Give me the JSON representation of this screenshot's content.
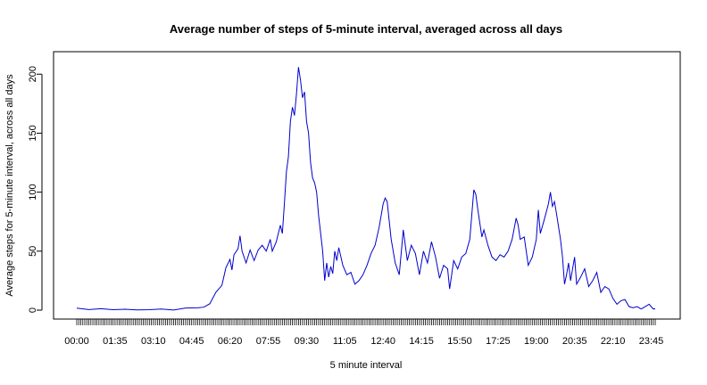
{
  "chart_data": {
    "type": "line",
    "title": "Average number of steps of 5-minute interval, averaged across all days",
    "xlabel": "5 minute interval",
    "ylabel": "Average steps for 5-minute interval, across all days",
    "ylim": [
      0,
      210
    ],
    "yticks": [
      0,
      50,
      100,
      150,
      200
    ],
    "xtick_labels": [
      "00:00",
      "01:35",
      "03:10",
      "04:45",
      "06:20",
      "07:55",
      "09:30",
      "11:05",
      "12:40",
      "14:15",
      "15:50",
      "17:25",
      "19:00",
      "20:35",
      "22:10",
      "23:45"
    ],
    "line_color": "#0000cd",
    "grid": false,
    "legend": "none",
    "series": [
      {
        "points": [
          [
            "00:00",
            1.7
          ],
          [
            "00:30",
            0.5
          ],
          [
            "01:00",
            1.2
          ],
          [
            "01:30",
            0.4
          ],
          [
            "02:00",
            0.8
          ],
          [
            "02:30",
            0.2
          ],
          [
            "03:00",
            0.4
          ],
          [
            "03:30",
            0.9
          ],
          [
            "04:00",
            0.1
          ],
          [
            "04:30",
            1.8
          ],
          [
            "05:00",
            2.0
          ],
          [
            "05:15",
            2.5
          ],
          [
            "05:30",
            5.4
          ],
          [
            "05:45",
            15.1
          ],
          [
            "06:00",
            21.0
          ],
          [
            "06:10",
            36.0
          ],
          [
            "06:20",
            43.0
          ],
          [
            "06:25",
            34.0
          ],
          [
            "06:30",
            47.0
          ],
          [
            "06:40",
            52.0
          ],
          [
            "06:45",
            63.0
          ],
          [
            "06:50",
            50.0
          ],
          [
            "07:00",
            40.0
          ],
          [
            "07:10",
            51.0
          ],
          [
            "07:20",
            42.0
          ],
          [
            "07:30",
            51.0
          ],
          [
            "07:40",
            55.0
          ],
          [
            "07:50",
            50.0
          ],
          [
            "08:00",
            60.0
          ],
          [
            "08:05",
            50.0
          ],
          [
            "08:15",
            58.0
          ],
          [
            "08:25",
            72.0
          ],
          [
            "08:30",
            65.0
          ],
          [
            "08:35",
            90.0
          ],
          [
            "08:40",
            117.0
          ],
          [
            "08:45",
            130.0
          ],
          [
            "08:50",
            160.0
          ],
          [
            "08:55",
            172.0
          ],
          [
            "09:00",
            165.0
          ],
          [
            "09:05",
            183.0
          ],
          [
            "09:10",
            206.0
          ],
          [
            "09:15",
            195.0
          ],
          [
            "09:20",
            180.0
          ],
          [
            "09:25",
            185.0
          ],
          [
            "09:30",
            160.0
          ],
          [
            "09:35",
            150.0
          ],
          [
            "09:40",
            125.0
          ],
          [
            "09:45",
            112.0
          ],
          [
            "09:50",
            108.0
          ],
          [
            "09:55",
            100.0
          ],
          [
            "10:00",
            80.0
          ],
          [
            "10:10",
            50.0
          ],
          [
            "10:15",
            25.0
          ],
          [
            "10:20",
            40.0
          ],
          [
            "10:25",
            28.0
          ],
          [
            "10:30",
            37.0
          ],
          [
            "10:35",
            31.0
          ],
          [
            "10:40",
            50.0
          ],
          [
            "10:45",
            42.0
          ],
          [
            "10:50",
            53.0
          ],
          [
            "11:00",
            38.0
          ],
          [
            "11:10",
            30.0
          ],
          [
            "11:20",
            32.0
          ],
          [
            "11:30",
            22.0
          ],
          [
            "11:40",
            25.0
          ],
          [
            "11:50",
            30.0
          ],
          [
            "12:00",
            38.0
          ],
          [
            "12:10",
            48.0
          ],
          [
            "12:20",
            55.0
          ],
          [
            "12:30",
            70.0
          ],
          [
            "12:40",
            90.0
          ],
          [
            "12:45",
            95.0
          ],
          [
            "12:50",
            92.0
          ],
          [
            "13:00",
            60.0
          ],
          [
            "13:10",
            40.0
          ],
          [
            "13:20",
            30.0
          ],
          [
            "13:30",
            68.0
          ],
          [
            "13:40",
            42.0
          ],
          [
            "13:50",
            55.0
          ],
          [
            "14:00",
            48.0
          ],
          [
            "14:10",
            30.0
          ],
          [
            "14:20",
            50.0
          ],
          [
            "14:30",
            40.0
          ],
          [
            "14:40",
            58.0
          ],
          [
            "14:50",
            45.0
          ],
          [
            "15:00",
            27.0
          ],
          [
            "15:10",
            38.0
          ],
          [
            "15:20",
            35.0
          ],
          [
            "15:25",
            18.0
          ],
          [
            "15:35",
            42.0
          ],
          [
            "15:45",
            35.0
          ],
          [
            "15:55",
            45.0
          ],
          [
            "16:05",
            48.0
          ],
          [
            "16:15",
            60.0
          ],
          [
            "16:25",
            102.0
          ],
          [
            "16:30",
            98.0
          ],
          [
            "16:35",
            85.0
          ],
          [
            "16:45",
            62.0
          ],
          [
            "16:50",
            68.0
          ],
          [
            "17:00",
            55.0
          ],
          [
            "17:10",
            45.0
          ],
          [
            "17:20",
            42.0
          ],
          [
            "17:30",
            47.0
          ],
          [
            "17:40",
            45.0
          ],
          [
            "17:50",
            50.0
          ],
          [
            "18:00",
            60.0
          ],
          [
            "18:10",
            78.0
          ],
          [
            "18:15",
            72.0
          ],
          [
            "18:20",
            60.0
          ],
          [
            "18:30",
            62.0
          ],
          [
            "18:40",
            38.0
          ],
          [
            "18:50",
            45.0
          ],
          [
            "19:00",
            60.0
          ],
          [
            "19:05",
            85.0
          ],
          [
            "19:10",
            65.0
          ],
          [
            "19:20",
            77.0
          ],
          [
            "19:30",
            90.0
          ],
          [
            "19:35",
            100.0
          ],
          [
            "19:40",
            88.0
          ],
          [
            "19:45",
            92.0
          ],
          [
            "19:50",
            82.0
          ],
          [
            "20:00",
            60.0
          ],
          [
            "20:05",
            45.0
          ],
          [
            "20:10",
            22.0
          ],
          [
            "20:15",
            30.0
          ],
          [
            "20:20",
            40.0
          ],
          [
            "20:25",
            25.0
          ],
          [
            "20:30",
            35.0
          ],
          [
            "20:35",
            45.0
          ],
          [
            "20:40",
            22.0
          ],
          [
            "20:50",
            28.0
          ],
          [
            "21:00",
            35.0
          ],
          [
            "21:10",
            20.0
          ],
          [
            "21:20",
            25.0
          ],
          [
            "21:30",
            32.0
          ],
          [
            "21:40",
            15.0
          ],
          [
            "21:50",
            20.0
          ],
          [
            "22:00",
            18.0
          ],
          [
            "22:10",
            10.0
          ],
          [
            "22:20",
            5.0
          ],
          [
            "22:30",
            8.0
          ],
          [
            "22:40",
            9.0
          ],
          [
            "22:50",
            3.0
          ],
          [
            "23:00",
            2.0
          ],
          [
            "23:10",
            3.0
          ],
          [
            "23:20",
            1.0
          ],
          [
            "23:30",
            3.0
          ],
          [
            "23:40",
            5.0
          ],
          [
            "23:50",
            1.0
          ],
          [
            "23:55",
            1.1
          ]
        ]
      }
    ]
  }
}
